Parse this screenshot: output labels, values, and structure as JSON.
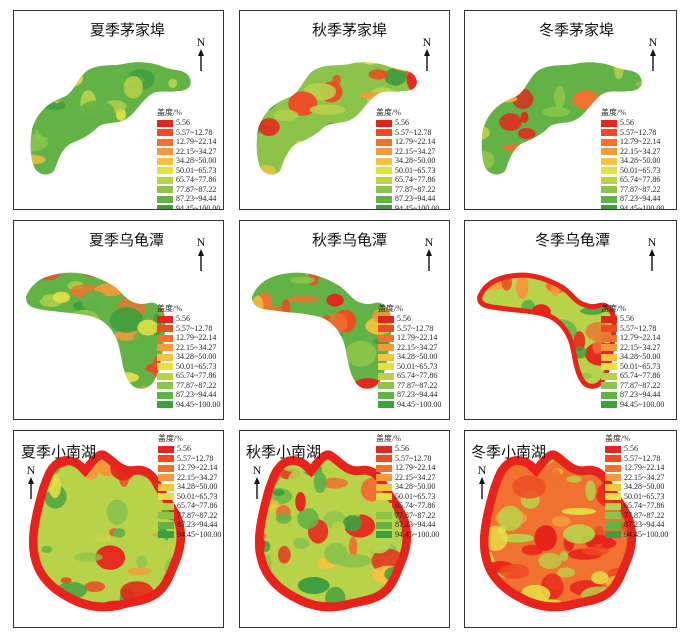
{
  "legend": {
    "title": "盖度/%",
    "classes": [
      {
        "label": "5.56",
        "color": "#e8221c"
      },
      {
        "label": "5.57~12.78",
        "color": "#ee4a24"
      },
      {
        "label": "12.79~22.14",
        "color": "#f07130"
      },
      {
        "label": "22.15~34.27",
        "color": "#f5993a"
      },
      {
        "label": "34.28~50.00",
        "color": "#f7c240"
      },
      {
        "label": "50.01~65.73",
        "color": "#e6e046"
      },
      {
        "label": "65.74~77.86",
        "color": "#b8d24a"
      },
      {
        "label": "77.87~87.22",
        "color": "#8cc44a"
      },
      {
        "label": "87.23~94.44",
        "color": "#62b246"
      },
      {
        "label": "94.45~100.00",
        "color": "#3f9e3e"
      }
    ]
  },
  "north_label": "N",
  "panels": [
    {
      "title": "夏季茅家埠",
      "site": "mjb",
      "season": "summer"
    },
    {
      "title": "秋季茅家埠",
      "site": "mjb",
      "season": "autumn"
    },
    {
      "title": "冬季茅家埠",
      "site": "mjb",
      "season": "winter"
    },
    {
      "title": "夏季乌龟潭",
      "site": "wgt",
      "season": "summer"
    },
    {
      "title": "秋季乌龟潭",
      "site": "wgt",
      "season": "autumn"
    },
    {
      "title": "冬季乌龟潭",
      "site": "wgt",
      "season": "winter"
    },
    {
      "title": "夏季小南湖",
      "site": "xnh",
      "season": "summer"
    },
    {
      "title": "秋季小南湖",
      "site": "xnh",
      "season": "autumn"
    },
    {
      "title": "冬季小南湖",
      "site": "xnh",
      "season": "winter"
    }
  ]
}
